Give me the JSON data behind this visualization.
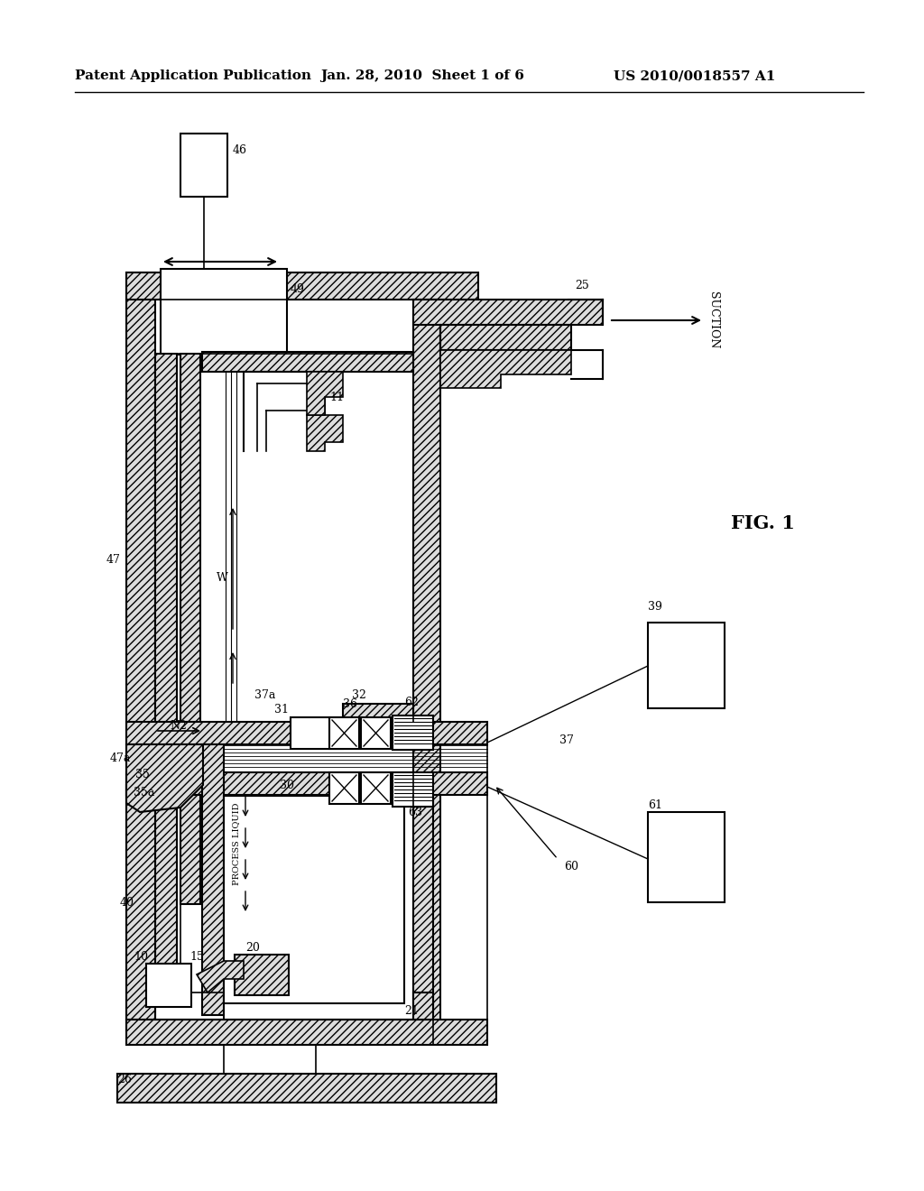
{
  "bg_color": "#ffffff",
  "line_color": "#000000",
  "header_left": "Patent Application Publication",
  "header_center": "Jan. 28, 2010  Sheet 1 of 6",
  "header_right": "US 2010/0018557 A1",
  "fig_label": "FIG. 1",
  "header_fontsize": 11,
  "label_fontsize": 9
}
